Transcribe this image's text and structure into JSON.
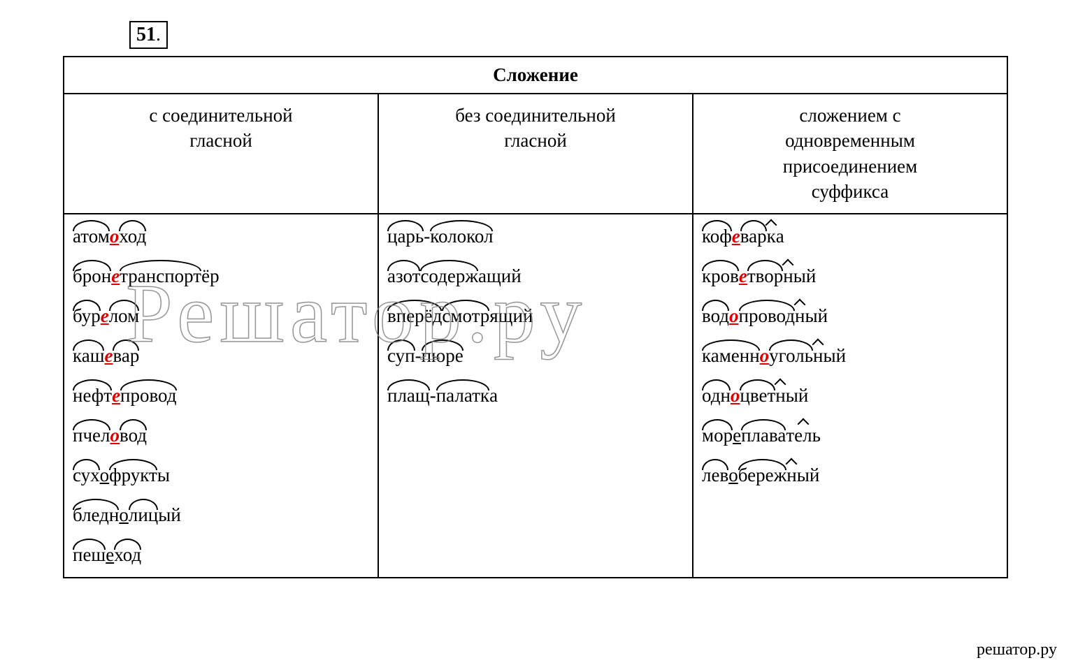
{
  "exercise_number": "51",
  "table": {
    "title": "Сложение",
    "headers": {
      "col1": "с соединительной\nгласной",
      "col2": "без соединительной\nгласной",
      "col3": "сложением с\nодновременным\nприсоединением\nсуффикса"
    },
    "columns": {
      "col1": [
        {
          "segments": [
            {
              "t": "атом",
              "m": "arc"
            },
            {
              "t": "о",
              "m": "red_u"
            },
            {
              "t": "ход",
              "m": "arc"
            }
          ]
        },
        {
          "segments": [
            {
              "t": "брон",
              "m": "arc"
            },
            {
              "t": "е",
              "m": "red_u"
            },
            {
              "t": "транспорт",
              "m": "arc"
            },
            {
              "t": "ёр",
              "m": ""
            }
          ]
        },
        {
          "segments": [
            {
              "t": "бур",
              "m": "arc"
            },
            {
              "t": "е",
              "m": "red_u"
            },
            {
              "t": "лом",
              "m": "arc"
            }
          ]
        },
        {
          "segments": [
            {
              "t": "каш",
              "m": "arc"
            },
            {
              "t": "е",
              "m": "red_u"
            },
            {
              "t": "вар",
              "m": "arc"
            }
          ]
        },
        {
          "segments": [
            {
              "t": "нефт",
              "m": "arc"
            },
            {
              "t": "е",
              "m": "red_u"
            },
            {
              "t": "провод",
              "m": "arc"
            }
          ]
        },
        {
          "segments": [
            {
              "t": "пчел",
              "m": "arc"
            },
            {
              "t": "о",
              "m": "red_u"
            },
            {
              "t": "вод",
              "m": "arc"
            }
          ]
        },
        {
          "segments": [
            {
              "t": "сух",
              "m": "arc"
            },
            {
              "t": "о",
              "m": "u"
            },
            {
              "t": "фрукт",
              "m": "arc"
            },
            {
              "t": "ы",
              "m": ""
            }
          ]
        },
        {
          "segments": [
            {
              "t": "бледн",
              "m": "arc"
            },
            {
              "t": "о",
              "m": "u"
            },
            {
              "t": "лиц",
              "m": "arc"
            },
            {
              "t": "ый",
              "m": ""
            }
          ]
        },
        {
          "segments": [
            {
              "t": "пеш",
              "m": "arc"
            },
            {
              "t": "е",
              "m": "u"
            },
            {
              "t": "ход",
              "m": "arc"
            }
          ]
        }
      ],
      "col2": [
        {
          "segments": [
            {
              "t": "царь",
              "m": "arc"
            },
            {
              "t": "-",
              "m": ""
            },
            {
              "t": "колокол",
              "m": "arc"
            }
          ]
        },
        {
          "segments": [
            {
              "t": "азот",
              "m": "arc"
            },
            {
              "t": "содерж",
              "m": "arc"
            },
            {
              "t": "ащий",
              "m": ""
            }
          ]
        },
        {
          "segments": [
            {
              "t": "вперёд",
              "m": "arc"
            },
            {
              "t": "смотр",
              "m": "arc"
            },
            {
              "t": "ящий",
              "m": ""
            }
          ]
        },
        {
          "segments": [
            {
              "t": "суп",
              "m": "arc"
            },
            {
              "t": "-",
              "m": ""
            },
            {
              "t": "пюре",
              "m": "arc"
            }
          ]
        },
        {
          "segments": [
            {
              "t": "плащ",
              "m": "arc"
            },
            {
              "t": "-",
              "m": ""
            },
            {
              "t": "палатк",
              "m": "arc"
            },
            {
              "t": "а",
              "m": ""
            }
          ]
        }
      ],
      "col3": [
        {
          "segments": [
            {
              "t": "коф",
              "m": "arc"
            },
            {
              "t": "е",
              "m": "red_u"
            },
            {
              "t": "вар",
              "m": "arc"
            },
            {
              "t": "к",
              "m": "caret"
            },
            {
              "t": "а",
              "m": ""
            }
          ]
        },
        {
          "segments": [
            {
              "t": "кров",
              "m": "arc"
            },
            {
              "t": "е",
              "m": "red_u"
            },
            {
              "t": "твор",
              "m": "arc"
            },
            {
              "t": "н",
              "m": "caret"
            },
            {
              "t": "ый",
              "m": ""
            }
          ]
        },
        {
          "segments": [
            {
              "t": "вод",
              "m": "arc"
            },
            {
              "t": "о",
              "m": "red_u"
            },
            {
              "t": "провод",
              "m": "arc"
            },
            {
              "t": "н",
              "m": "caret"
            },
            {
              "t": "ый",
              "m": ""
            }
          ]
        },
        {
          "segments": [
            {
              "t": "каменн",
              "m": "arc"
            },
            {
              "t": "о",
              "m": "red_u"
            },
            {
              "t": "уголь",
              "m": "arc"
            },
            {
              "t": "н",
              "m": "caret"
            },
            {
              "t": "ый",
              "m": ""
            }
          ]
        },
        {
          "segments": [
            {
              "t": "одн",
              "m": "arc"
            },
            {
              "t": "о",
              "m": "red_u"
            },
            {
              "t": "цвет",
              "m": "arc"
            },
            {
              "t": "н",
              "m": "caret"
            },
            {
              "t": "ый",
              "m": ""
            }
          ]
        },
        {
          "segments": [
            {
              "t": "мор",
              "m": "arc"
            },
            {
              "t": "е",
              "m": "u"
            },
            {
              "t": "плава",
              "m": "arc"
            },
            {
              "t": "тель",
              "m": "caret"
            }
          ]
        },
        {
          "segments": [
            {
              "t": "лев",
              "m": "arc"
            },
            {
              "t": "о",
              "m": "u"
            },
            {
              "t": "береж",
              "m": "arc"
            },
            {
              "t": "н",
              "m": "caret"
            },
            {
              "t": "ый",
              "m": ""
            }
          ]
        }
      ]
    }
  },
  "watermark_text": "Решатор.ру",
  "footer_text": "решатор.ру",
  "colors": {
    "highlight": "#e00000",
    "text": "#000000",
    "bg": "#ffffff"
  }
}
